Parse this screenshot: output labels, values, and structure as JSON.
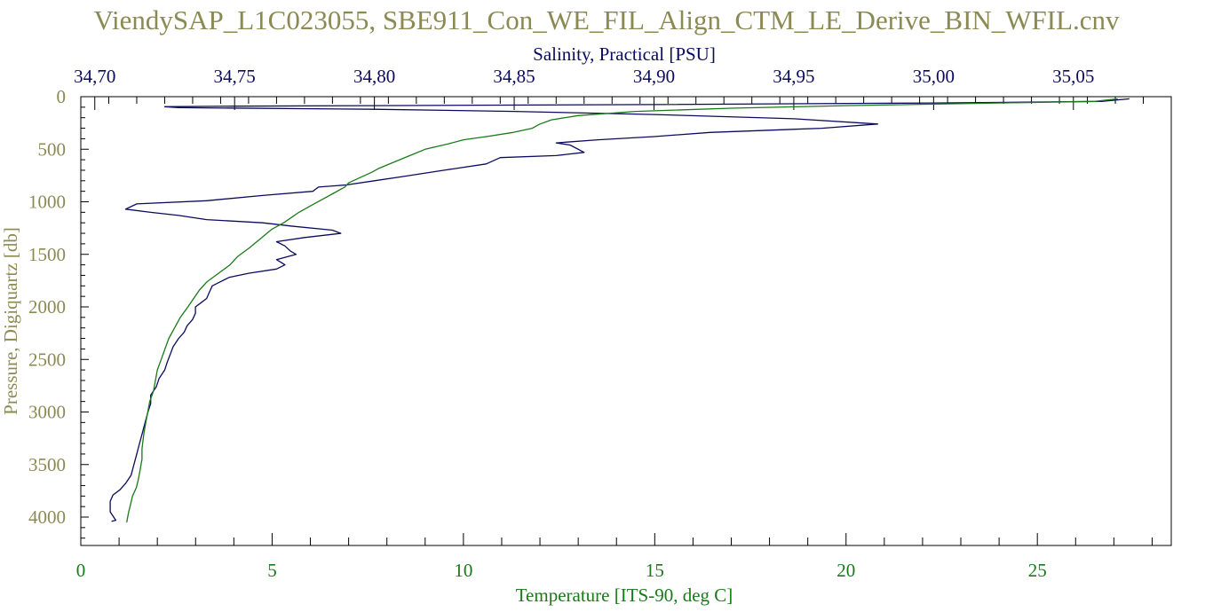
{
  "colors": {
    "title": "#8b8a52",
    "pressure_axis": "#8b8a52",
    "salinity": "#0b0b5e",
    "temperature": "#1a7a1a",
    "frame": "#000000"
  },
  "chart_data": {
    "type": "line",
    "title": "ViendySAP_L1C023055, SBE911_Con_WE_FIL_Align_CTM_LE_Derive_BIN_WFIL.cnv",
    "y_axis": {
      "label": "Pressure, Digiquartz [db]",
      "range": [
        0,
        4250
      ],
      "inverted": true,
      "ticks": [
        0,
        500,
        1000,
        1500,
        2000,
        2500,
        3000,
        3500,
        4000
      ],
      "tick_labels": [
        "0",
        "500",
        "1000",
        "1500",
        "2000",
        "2500",
        "3000",
        "3500",
        "4000"
      ]
    },
    "x_top_axis": {
      "label": "Salinity, Practical [PSU]",
      "range": [
        34.695,
        35.085
      ],
      "ticks": [
        34.7,
        34.75,
        34.8,
        34.85,
        34.9,
        34.95,
        35.0,
        35.05
      ],
      "tick_labels": [
        "34,70",
        "34,75",
        "34,80",
        "34,85",
        "34,90",
        "34,95",
        "35,00",
        "35,05"
      ]
    },
    "x_bottom_axis": {
      "label": "Temperature [ITS-90, deg C]",
      "range": [
        0,
        28.5
      ],
      "ticks": [
        0,
        5,
        10,
        15,
        20,
        25
      ],
      "tick_labels": [
        "0",
        "5",
        "10",
        "15",
        "20",
        "25"
      ]
    },
    "grid": false,
    "legend": "none",
    "series": [
      {
        "name": "Salinity, Practical [PSU]",
        "axis": "top",
        "points": [
          [
            35.07,
            20
          ],
          [
            35.06,
            45
          ],
          [
            35.0,
            60
          ],
          [
            34.9,
            75
          ],
          [
            34.8,
            85
          ],
          [
            34.75,
            90
          ],
          [
            34.725,
            95
          ],
          [
            34.73,
            105
          ],
          [
            34.8,
            120
          ],
          [
            34.85,
            140
          ],
          [
            34.9,
            170
          ],
          [
            34.95,
            210
          ],
          [
            34.98,
            260
          ],
          [
            34.96,
            300
          ],
          [
            34.92,
            340
          ],
          [
            34.9,
            380
          ],
          [
            34.88,
            410
          ],
          [
            34.865,
            440
          ],
          [
            34.87,
            460
          ],
          [
            34.875,
            530
          ],
          [
            34.865,
            560
          ],
          [
            34.845,
            580
          ],
          [
            34.84,
            640
          ],
          [
            34.825,
            700
          ],
          [
            34.81,
            760
          ],
          [
            34.8,
            800
          ],
          [
            34.79,
            840
          ],
          [
            34.78,
            860
          ],
          [
            34.778,
            900
          ],
          [
            34.76,
            940
          ],
          [
            34.74,
            990
          ],
          [
            34.715,
            1020
          ],
          [
            34.711,
            1070
          ],
          [
            34.72,
            1100
          ],
          [
            34.73,
            1130
          ],
          [
            34.74,
            1170
          ],
          [
            34.76,
            1200
          ],
          [
            34.77,
            1230
          ],
          [
            34.785,
            1270
          ],
          [
            34.788,
            1300
          ],
          [
            34.775,
            1340
          ],
          [
            34.765,
            1380
          ],
          [
            34.768,
            1420
          ],
          [
            34.77,
            1470
          ],
          [
            34.772,
            1500
          ],
          [
            34.765,
            1550
          ],
          [
            34.768,
            1600
          ],
          [
            34.765,
            1640
          ],
          [
            34.755,
            1680
          ],
          [
            34.748,
            1720
          ],
          [
            34.745,
            1760
          ],
          [
            34.742,
            1800
          ],
          [
            34.741,
            1860
          ],
          [
            34.74,
            1920
          ],
          [
            34.738,
            1960
          ],
          [
            34.736,
            2000
          ],
          [
            34.736,
            2060
          ],
          [
            34.735,
            2120
          ],
          [
            34.733,
            2180
          ],
          [
            34.732,
            2240
          ],
          [
            34.73,
            2300
          ],
          [
            34.728,
            2380
          ],
          [
            34.727,
            2450
          ],
          [
            34.726,
            2520
          ],
          [
            34.725,
            2600
          ],
          [
            34.723,
            2680
          ],
          [
            34.722,
            2760
          ],
          [
            34.72,
            2840
          ],
          [
            34.72,
            2920
          ],
          [
            34.719,
            3000
          ],
          [
            34.718,
            3100
          ],
          [
            34.717,
            3200
          ],
          [
            34.716,
            3300
          ],
          [
            34.715,
            3400
          ],
          [
            34.714,
            3500
          ],
          [
            34.713,
            3600
          ],
          [
            34.711,
            3680
          ],
          [
            34.709,
            3740
          ],
          [
            34.7065,
            3790
          ],
          [
            34.7055,
            3850
          ],
          [
            34.7055,
            3950
          ],
          [
            34.7075,
            4030
          ],
          [
            34.706,
            4040
          ]
        ]
      },
      {
        "name": "Temperature [ITS-90, deg C]",
        "axis": "bottom",
        "points": [
          [
            27.1,
            20
          ],
          [
            26.5,
            45
          ],
          [
            24.0,
            60
          ],
          [
            20.0,
            85
          ],
          [
            17.0,
            110
          ],
          [
            14.5,
            140
          ],
          [
            13.0,
            180
          ],
          [
            12.3,
            220
          ],
          [
            12.0,
            260
          ],
          [
            11.8,
            300
          ],
          [
            11.3,
            340
          ],
          [
            10.6,
            380
          ],
          [
            10.0,
            410
          ],
          [
            9.6,
            450
          ],
          [
            9.0,
            500
          ],
          [
            8.6,
            560
          ],
          [
            8.2,
            620
          ],
          [
            7.8,
            680
          ],
          [
            7.6,
            720
          ],
          [
            7.3,
            770
          ],
          [
            7.0,
            820
          ],
          [
            6.9,
            860
          ],
          [
            6.6,
            920
          ],
          [
            6.3,
            980
          ],
          [
            6.0,
            1040
          ],
          [
            5.7,
            1100
          ],
          [
            5.5,
            1150
          ],
          [
            5.3,
            1200
          ],
          [
            5.0,
            1260
          ],
          [
            4.8,
            1320
          ],
          [
            4.6,
            1380
          ],
          [
            4.4,
            1440
          ],
          [
            4.1,
            1520
          ],
          [
            3.9,
            1600
          ],
          [
            3.6,
            1680
          ],
          [
            3.3,
            1760
          ],
          [
            3.1,
            1840
          ],
          [
            2.95,
            1920
          ],
          [
            2.8,
            2000
          ],
          [
            2.6,
            2100
          ],
          [
            2.45,
            2200
          ],
          [
            2.3,
            2300
          ],
          [
            2.2,
            2400
          ],
          [
            2.1,
            2500
          ],
          [
            2.0,
            2600
          ],
          [
            1.95,
            2700
          ],
          [
            1.9,
            2800
          ],
          [
            1.8,
            2900
          ],
          [
            1.75,
            3000
          ],
          [
            1.7,
            3100
          ],
          [
            1.65,
            3200
          ],
          [
            1.6,
            3350
          ],
          [
            1.6,
            3450
          ],
          [
            1.55,
            3550
          ],
          [
            1.5,
            3650
          ],
          [
            1.45,
            3720
          ],
          [
            1.35,
            3800
          ],
          [
            1.3,
            3880
          ],
          [
            1.25,
            3950
          ],
          [
            1.2,
            4050
          ]
        ]
      }
    ]
  }
}
